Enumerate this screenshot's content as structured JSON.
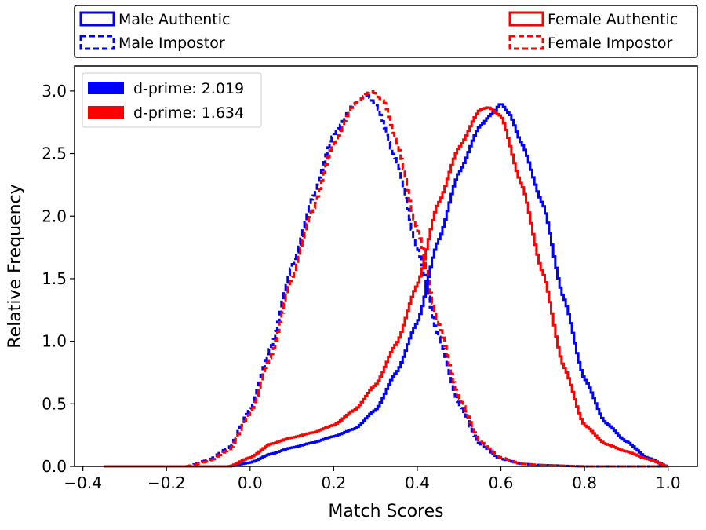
{
  "chart_data": {
    "type": "histogram-step",
    "xlabel": "Match Scores",
    "ylabel": "Relative Frequency",
    "xlim": [
      -0.42,
      1.07
    ],
    "ylim": [
      0.0,
      3.2
    ],
    "x_ticks": [
      -0.4,
      -0.2,
      0.0,
      0.2,
      0.4,
      0.6,
      0.8,
      1.0
    ],
    "x_tick_labels": [
      "−0.4",
      "−0.2",
      "0.0",
      "0.2",
      "0.4",
      "0.6",
      "0.8",
      "1.0"
    ],
    "y_ticks": [
      0.0,
      0.5,
      1.0,
      1.5,
      2.0,
      2.5,
      3.0
    ],
    "y_tick_labels": [
      "0.0",
      "0.5",
      "1.0",
      "1.5",
      "2.0",
      "2.5",
      "3.0"
    ],
    "top_legend": {
      "placement": "above-plot",
      "entries": [
        {
          "label": "Male Authentic",
          "color": "#0000ff",
          "dash": "solid"
        },
        {
          "label": "Male Impostor",
          "color": "#0000ff",
          "dash": "dashed"
        },
        {
          "label": "Female Authentic",
          "color": "#ff0000",
          "dash": "solid"
        },
        {
          "label": "Female Impostor",
          "color": "#ff0000",
          "dash": "dashed"
        }
      ]
    },
    "inner_legend": {
      "placement": "top-left",
      "entries": [
        {
          "label": "d-prime: 2.019",
          "color": "#0000ff"
        },
        {
          "label": "d-prime: 1.634",
          "color": "#ff0000"
        }
      ]
    },
    "series": [
      {
        "name": "Male Impostor",
        "color": "#0000ff",
        "dash": "dashed",
        "x": [
          -0.35,
          -0.15,
          -0.1,
          -0.05,
          0.0,
          0.05,
          0.1,
          0.15,
          0.2,
          0.25,
          0.28,
          0.3,
          0.35,
          0.4,
          0.45,
          0.5,
          0.55,
          0.6,
          0.65,
          0.7,
          0.8,
          1.0
        ],
        "y": [
          0.0,
          0.0,
          0.05,
          0.15,
          0.45,
          0.95,
          1.6,
          2.15,
          2.65,
          2.9,
          2.97,
          2.9,
          2.45,
          1.75,
          1.05,
          0.5,
          0.18,
          0.06,
          0.02,
          0.01,
          0.0,
          0.0
        ]
      },
      {
        "name": "Female Impostor",
        "color": "#ff0000",
        "dash": "dashed",
        "x": [
          -0.35,
          -0.15,
          -0.1,
          -0.05,
          0.0,
          0.05,
          0.1,
          0.15,
          0.2,
          0.25,
          0.29,
          0.32,
          0.35,
          0.4,
          0.45,
          0.5,
          0.55,
          0.6,
          0.65,
          0.7,
          0.8,
          1.0
        ],
        "y": [
          0.0,
          0.0,
          0.04,
          0.13,
          0.42,
          0.88,
          1.5,
          2.05,
          2.58,
          2.9,
          3.0,
          2.92,
          2.6,
          1.9,
          1.15,
          0.55,
          0.2,
          0.07,
          0.02,
          0.01,
          0.0,
          0.0
        ]
      },
      {
        "name": "Male Authentic",
        "color": "#0000ff",
        "dash": "solid",
        "x": [
          -0.35,
          -0.05,
          0.0,
          0.05,
          0.1,
          0.15,
          0.2,
          0.25,
          0.3,
          0.35,
          0.4,
          0.45,
          0.5,
          0.55,
          0.58,
          0.6,
          0.62,
          0.65,
          0.7,
          0.75,
          0.8,
          0.85,
          0.9,
          0.95,
          1.0
        ],
        "y": [
          0.0,
          0.0,
          0.03,
          0.1,
          0.15,
          0.19,
          0.24,
          0.3,
          0.45,
          0.75,
          1.15,
          1.8,
          2.35,
          2.72,
          2.82,
          2.9,
          2.82,
          2.58,
          2.1,
          1.35,
          0.7,
          0.35,
          0.2,
          0.07,
          0.0
        ]
      },
      {
        "name": "Female Authentic",
        "color": "#ff0000",
        "dash": "solid",
        "x": [
          -0.35,
          -0.05,
          0.0,
          0.05,
          0.1,
          0.15,
          0.2,
          0.25,
          0.3,
          0.35,
          0.4,
          0.45,
          0.5,
          0.55,
          0.57,
          0.6,
          0.65,
          0.7,
          0.75,
          0.8,
          0.85,
          0.9,
          0.95,
          1.0
        ],
        "y": [
          0.0,
          0.0,
          0.07,
          0.18,
          0.23,
          0.27,
          0.33,
          0.45,
          0.65,
          0.98,
          1.45,
          2.1,
          2.55,
          2.85,
          2.87,
          2.8,
          2.25,
          1.55,
          0.8,
          0.33,
          0.18,
          0.12,
          0.06,
          0.0
        ]
      }
    ]
  }
}
